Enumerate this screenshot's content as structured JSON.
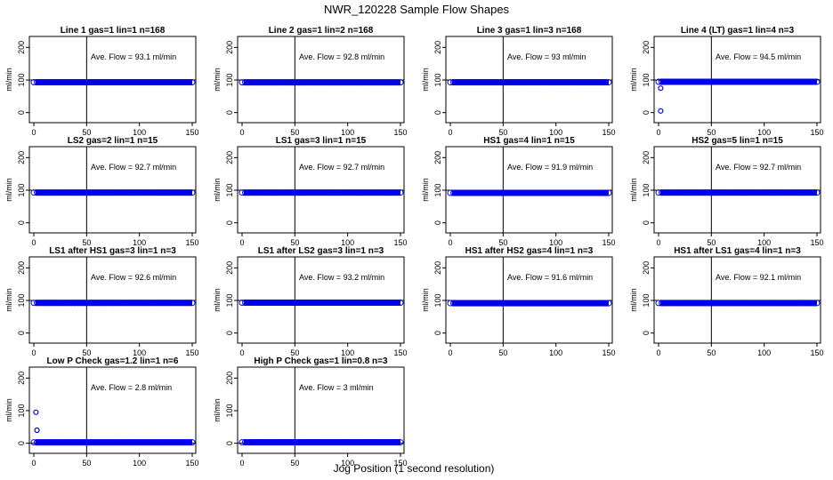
{
  "title": "NWR_120228  Sample Flow Shapes",
  "xlabel": "Jog Position (1 second resolution)",
  "colors": {
    "points": "#0000ee",
    "axis": "#000000"
  },
  "chart_data": [
    {
      "type": "scatter",
      "title": "Line 1 gas=1 lin=1 n=168",
      "ylabel": "ml/min",
      "xlim": [
        0,
        150
      ],
      "ylim": [
        -20,
        220
      ],
      "xticks": [
        0,
        50,
        100,
        150
      ],
      "yticks": [
        0,
        100,
        200
      ],
      "vline": 50,
      "hline": 100,
      "annotation": "Ave. Flow =  93.1  ml/min",
      "flow": 93.1,
      "outliers": []
    },
    {
      "type": "scatter",
      "title": "Line 2 gas=1 lin=2 n=168",
      "ylabel": "ml/min",
      "xlim": [
        0,
        150
      ],
      "ylim": [
        -20,
        220
      ],
      "xticks": [
        0,
        50,
        100,
        150
      ],
      "yticks": [
        0,
        100,
        200
      ],
      "vline": 50,
      "hline": 100,
      "annotation": "Ave. Flow =  92.8  ml/min",
      "flow": 92.8,
      "outliers": []
    },
    {
      "type": "scatter",
      "title": "Line 3 gas=1 lin=3 n=168",
      "ylabel": "ml/min",
      "xlim": [
        0,
        150
      ],
      "ylim": [
        -20,
        220
      ],
      "xticks": [
        0,
        50,
        100,
        150
      ],
      "yticks": [
        0,
        100,
        200
      ],
      "vline": 50,
      "hline": 100,
      "annotation": "Ave. Flow =  93  ml/min",
      "flow": 93,
      "outliers": []
    },
    {
      "type": "scatter",
      "title": "Line 4 (LT) gas=1 lin=4 n=3",
      "ylabel": "ml/min",
      "xlim": [
        0,
        150
      ],
      "ylim": [
        -20,
        220
      ],
      "xticks": [
        0,
        50,
        100,
        150
      ],
      "yticks": [
        0,
        100,
        200
      ],
      "vline": 50,
      "hline": 100,
      "annotation": "Ave. Flow =  94.5  ml/min",
      "flow": 94.5,
      "outliers": [
        [
          2,
          5
        ],
        [
          2,
          75
        ]
      ]
    },
    {
      "type": "scatter",
      "title": "LS2 gas=2 lin=1 n=15",
      "ylabel": "ml/min",
      "xlim": [
        0,
        150
      ],
      "ylim": [
        -20,
        220
      ],
      "xticks": [
        0,
        50,
        100,
        150
      ],
      "yticks": [
        0,
        100,
        200
      ],
      "vline": 50,
      "hline": 100,
      "annotation": "Ave. Flow =  92.7  ml/min",
      "flow": 92.7,
      "outliers": []
    },
    {
      "type": "scatter",
      "title": "LS1 gas=3 lin=1 n=15",
      "ylabel": "ml/min",
      "xlim": [
        0,
        150
      ],
      "ylim": [
        -20,
        220
      ],
      "xticks": [
        0,
        50,
        100,
        150
      ],
      "yticks": [
        0,
        100,
        200
      ],
      "vline": 50,
      "hline": 100,
      "annotation": "Ave. Flow =  92.7  ml/min",
      "flow": 92.7,
      "outliers": []
    },
    {
      "type": "scatter",
      "title": "HS1 gas=4 lin=1 n=15",
      "ylabel": "ml/min",
      "xlim": [
        0,
        150
      ],
      "ylim": [
        -20,
        220
      ],
      "xticks": [
        0,
        50,
        100,
        150
      ],
      "yticks": [
        0,
        100,
        200
      ],
      "vline": 50,
      "hline": 100,
      "annotation": "Ave. Flow =  91.9  ml/min",
      "flow": 91.9,
      "outliers": []
    },
    {
      "type": "scatter",
      "title": "HS2 gas=5 lin=1 n=15",
      "ylabel": "ml/min",
      "xlim": [
        0,
        150
      ],
      "ylim": [
        -20,
        220
      ],
      "xticks": [
        0,
        50,
        100,
        150
      ],
      "yticks": [
        0,
        100,
        200
      ],
      "vline": 50,
      "hline": 100,
      "annotation": "Ave. Flow =  92.7  ml/min",
      "flow": 92.7,
      "outliers": []
    },
    {
      "type": "scatter",
      "title": "LS1 after HS1 gas=3 lin=1 n=3",
      "ylabel": "ml/min",
      "xlim": [
        0,
        150
      ],
      "ylim": [
        -20,
        220
      ],
      "xticks": [
        0,
        50,
        100,
        150
      ],
      "yticks": [
        0,
        100,
        200
      ],
      "vline": 50,
      "hline": 100,
      "annotation": "Ave. Flow =  92.6  ml/min",
      "flow": 92.6,
      "outliers": []
    },
    {
      "type": "scatter",
      "title": "LS1 after LS2 gas=3 lin=1 n=3",
      "ylabel": "ml/min",
      "xlim": [
        0,
        150
      ],
      "ylim": [
        -20,
        220
      ],
      "xticks": [
        0,
        50,
        100,
        150
      ],
      "yticks": [
        0,
        100,
        200
      ],
      "vline": 50,
      "hline": 100,
      "annotation": "Ave. Flow =  93.2  ml/min",
      "flow": 93.2,
      "outliers": []
    },
    {
      "type": "scatter",
      "title": "HS1 after HS2 gas=4 lin=1 n=3",
      "ylabel": "ml/min",
      "xlim": [
        0,
        150
      ],
      "ylim": [
        -20,
        220
      ],
      "xticks": [
        0,
        50,
        100,
        150
      ],
      "yticks": [
        0,
        100,
        200
      ],
      "vline": 50,
      "hline": 100,
      "annotation": "Ave. Flow =  91.6  ml/min",
      "flow": 91.6,
      "outliers": []
    },
    {
      "type": "scatter",
      "title": "HS1 after LS1 gas=4 lin=1 n=3",
      "ylabel": "ml/min",
      "xlim": [
        0,
        150
      ],
      "ylim": [
        -20,
        220
      ],
      "xticks": [
        0,
        50,
        100,
        150
      ],
      "yticks": [
        0,
        100,
        200
      ],
      "vline": 50,
      "hline": 100,
      "annotation": "Ave. Flow =  92.1  ml/min",
      "flow": 92.1,
      "outliers": []
    },
    {
      "type": "scatter",
      "title": "Low P Check gas=1.2 lin=1 n=6",
      "ylabel": "ml/min",
      "xlim": [
        0,
        150
      ],
      "ylim": [
        -20,
        220
      ],
      "xticks": [
        0,
        50,
        100,
        150
      ],
      "yticks": [
        0,
        100,
        200
      ],
      "vline": 50,
      "hline": 0,
      "annotation": "Ave. Flow =  2.8  ml/min",
      "flow": 2.8,
      "outliers": [
        [
          2,
          95
        ],
        [
          3,
          40
        ]
      ]
    },
    {
      "type": "scatter",
      "title": "High P Check gas=1 lin=0.8 n=3",
      "ylabel": "ml/min",
      "xlim": [
        0,
        150
      ],
      "ylim": [
        -20,
        220
      ],
      "xticks": [
        0,
        50,
        100,
        150
      ],
      "yticks": [
        0,
        100,
        200
      ],
      "vline": 50,
      "hline": 0,
      "annotation": "Ave. Flow =  3  ml/min",
      "flow": 3,
      "outliers": []
    }
  ]
}
